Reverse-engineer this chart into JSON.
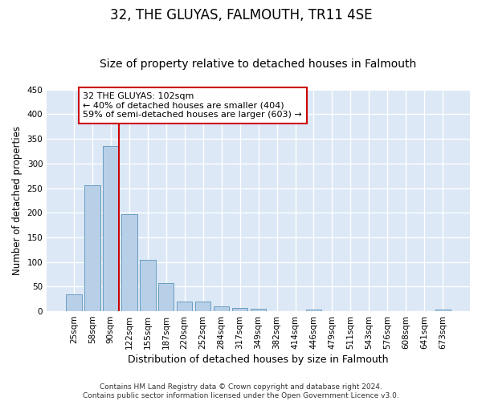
{
  "title": "32, THE GLUYAS, FALMOUTH, TR11 4SE",
  "subtitle": "Size of property relative to detached houses in Falmouth",
  "xlabel": "Distribution of detached houses by size in Falmouth",
  "ylabel": "Number of detached properties",
  "categories": [
    "25sqm",
    "58sqm",
    "90sqm",
    "122sqm",
    "155sqm",
    "187sqm",
    "220sqm",
    "252sqm",
    "284sqm",
    "317sqm",
    "349sqm",
    "382sqm",
    "414sqm",
    "446sqm",
    "479sqm",
    "511sqm",
    "543sqm",
    "576sqm",
    "608sqm",
    "641sqm",
    "673sqm"
  ],
  "values": [
    35,
    256,
    335,
    197,
    104,
    57,
    20,
    20,
    10,
    6,
    5,
    0,
    0,
    4,
    0,
    0,
    0,
    0,
    0,
    0,
    4
  ],
  "bar_color": "#b8cfe8",
  "bar_edge_color": "#6a9ec0",
  "background_color": "#dce8f5",
  "grid_color": "#ffffff",
  "red_line_index": 2,
  "annotation_text": "32 THE GLUYAS: 102sqm\n← 40% of detached houses are smaller (404)\n59% of semi-detached houses are larger (603) →",
  "annotation_box_facecolor": "#ffffff",
  "annotation_box_edgecolor": "#cc0000",
  "red_line_color": "#cc0000",
  "ylim": [
    0,
    450
  ],
  "yticks": [
    0,
    50,
    100,
    150,
    200,
    250,
    300,
    350,
    400,
    450
  ],
  "footer": "Contains HM Land Registry data © Crown copyright and database right 2024.\nContains public sector information licensed under the Open Government Licence v3.0.",
  "title_fontsize": 12,
  "subtitle_fontsize": 10,
  "xlabel_fontsize": 9,
  "ylabel_fontsize": 8.5,
  "tick_fontsize": 7.5,
  "annotation_fontsize": 8,
  "footer_fontsize": 6.5,
  "fig_facecolor": "#ffffff"
}
